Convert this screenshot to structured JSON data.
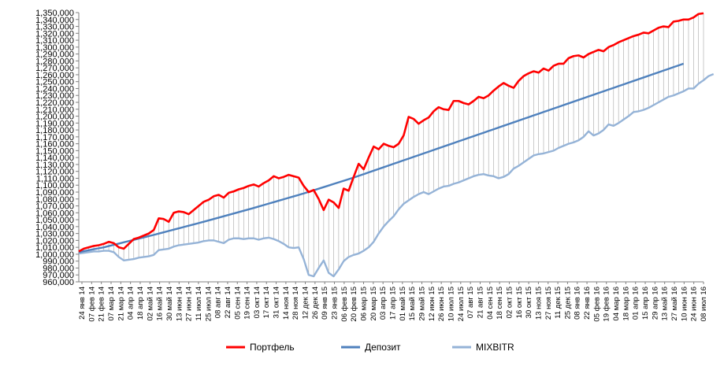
{
  "chart_data": {
    "type": "line",
    "title": "",
    "xlabel": "",
    "ylabel": "",
    "ylim": [
      960000,
      1350000
    ],
    "ytick_step": 10000,
    "y_ticks": [
      "960,000",
      "970,000",
      "980,000",
      "990,000",
      "1,000,000",
      "1,010,000",
      "1,020,000",
      "1,030,000",
      "1,040,000",
      "1,050,000",
      "1,060,000",
      "1,070,000",
      "1,080,000",
      "1,090,000",
      "1,100,000",
      "1,110,000",
      "1,120,000",
      "1,130,000",
      "1,140,000",
      "1,150,000",
      "1,160,000",
      "1,170,000",
      "1,180,000",
      "1,190,000",
      "1,200,000",
      "1,210,000",
      "1,220,000",
      "1,230,000",
      "1,240,000",
      "1,250,000",
      "1,260,000",
      "1,270,000",
      "1,280,000",
      "1,290,000",
      "1,300,000",
      "1,310,000",
      "1,320,000",
      "1,330,000",
      "1,340,000",
      "1,350,000"
    ],
    "x_ticks": [
      "24 янв 14",
      "07 фев 14",
      "21 фев 14",
      "07 мар 14",
      "21 мар 14",
      "04 апр 14",
      "18 апр 14",
      "02 май 14",
      "16 май 14",
      "30 май 14",
      "13 июн 14",
      "27 июн 14",
      "11 июл 14",
      "25 июл 14",
      "08 авг 14",
      "22 авг 14",
      "05 сен 14",
      "19 сен 14",
      "03 окт 14",
      "17 окт 14",
      "31 окт 14",
      "14 ноя 14",
      "28 ноя 14",
      "12 дек 14",
      "26 дек 14",
      "09 янв 15",
      "23 янв 15",
      "06 фев 15",
      "20 фев 15",
      "06 мар 15",
      "20 мар 15",
      "03 апр 15",
      "17 апр 15",
      "01 май 15",
      "15 май 15",
      "29 май 15",
      "12 июн 15",
      "26 июн 15",
      "10 июл 15",
      "24 июл 15",
      "07 авг 15",
      "21 авг 15",
      "04 сен 15",
      "18 сен 15",
      "02 окт 15",
      "16 окт 15",
      "30 окт 15",
      "13 ноя 15",
      "27 ноя 15",
      "11 дек 15",
      "25 дек 15",
      "08 янв 16",
      "22 янв 16",
      "05 фев 16",
      "19 фев 16",
      "04 мар 16",
      "18 мар 16",
      "01 апр 16",
      "15 апр 16",
      "29 апр 16",
      "13 май 16",
      "27 май 16",
      "10 июн 16",
      "24 июн 16",
      "08 июл 16"
    ],
    "grid": "vertical lines between Портфель and MIXBITR",
    "legend": "bottom",
    "series": [
      {
        "name": "Портфель",
        "color": "#ff0000",
        "values": [
          1004000,
          1008000,
          1010000,
          1012000,
          1013000,
          1015000,
          1018000,
          1016000,
          1010000,
          1008000,
          1015000,
          1022000,
          1024000,
          1027000,
          1030000,
          1035000,
          1052000,
          1051000,
          1047000,
          1060000,
          1062000,
          1061000,
          1058000,
          1064000,
          1070000,
          1076000,
          1079000,
          1084000,
          1086000,
          1082000,
          1089000,
          1091000,
          1094000,
          1096000,
          1099000,
          1101000,
          1098000,
          1103000,
          1107000,
          1113000,
          1110000,
          1112000,
          1115000,
          1113000,
          1111000,
          1099000,
          1090000,
          1093000,
          1080000,
          1064000,
          1079000,
          1075000,
          1067000,
          1095000,
          1092000,
          1112000,
          1131000,
          1123000,
          1140000,
          1156000,
          1152000,
          1160000,
          1157000,
          1155000,
          1160000,
          1172000,
          1199000,
          1196000,
          1189000,
          1194000,
          1198000,
          1207000,
          1213000,
          1210000,
          1209000,
          1222000,
          1222000,
          1219000,
          1217000,
          1222000,
          1228000,
          1226000,
          1230000,
          1237000,
          1243000,
          1248000,
          1244000,
          1241000,
          1251000,
          1258000,
          1262000,
          1265000,
          1263000,
          1269000,
          1266000,
          1273000,
          1276000,
          1276000,
          1284000,
          1287000,
          1288000,
          1285000,
          1290000,
          1293000,
          1296000,
          1294000,
          1300000,
          1303000,
          1307000,
          1310000,
          1313000,
          1316000,
          1318000,
          1321000,
          1320000,
          1324000,
          1328000,
          1330000,
          1329000,
          1337000,
          1338000,
          1340000,
          1340000,
          1343000,
          1348000,
          1349000
        ]
      },
      {
        "name": "Депозит",
        "color": "#4f81bd",
        "values": [
          1003000,
          1004400,
          1005800,
          1007200,
          1008600,
          1010000,
          1011800,
          1013600,
          1015400,
          1017200,
          1019000,
          1020800,
          1022600,
          1024400,
          1026200,
          1028000,
          1029900,
          1031800,
          1033700,
          1035600,
          1037500,
          1039400,
          1041300,
          1043200,
          1045100,
          1047000,
          1049000,
          1051000,
          1053000,
          1055000,
          1057000,
          1059000,
          1061000,
          1063000,
          1065000,
          1067000,
          1069100,
          1071200,
          1073300,
          1075400,
          1077500,
          1079600,
          1081700,
          1083800,
          1085900,
          1088000,
          1090300,
          1092600,
          1094900,
          1097200,
          1099500,
          1101800,
          1104100,
          1106400,
          1108700,
          1111000,
          1113500,
          1116000,
          1118500,
          1121000,
          1123500,
          1126000,
          1128500,
          1131000,
          1133500,
          1136000,
          1138500,
          1141000,
          1143500,
          1146000,
          1148500,
          1151000,
          1153500,
          1156000,
          1158500,
          1161000,
          1163500,
          1166000,
          1168500,
          1171000,
          1173500,
          1176000,
          1178500,
          1181000,
          1183500,
          1186000,
          1188500,
          1191000,
          1193500,
          1196000,
          1198500,
          1201000,
          1203500,
          1206000,
          1208500,
          1211000,
          1213500,
          1216000,
          1218500,
          1221000,
          1223500,
          1226000,
          1228500,
          1231000,
          1233500,
          1236000,
          1238500,
          1241000,
          1243500,
          1246000,
          1248500,
          1251000,
          1253500,
          1256000,
          1258500,
          1261000,
          1263500,
          1266000,
          1268500,
          1271000,
          1273500,
          1276000
        ]
      },
      {
        "name": "MIXBITR",
        "color": "#95b3d7",
        "values": [
          1001000,
          1002000,
          1003000,
          1004000,
          1004000,
          1005000,
          1005000,
          1003000,
          996000,
          991000,
          992000,
          993000,
          995000,
          996000,
          997000,
          999000,
          1006000,
          1007000,
          1008000,
          1011000,
          1013000,
          1014000,
          1015000,
          1016000,
          1017000,
          1019000,
          1020000,
          1020000,
          1018000,
          1016000,
          1021000,
          1023000,
          1023000,
          1022000,
          1023000,
          1023000,
          1021000,
          1023000,
          1024000,
          1022000,
          1019000,
          1015000,
          1010000,
          1009000,
          1010000,
          993000,
          970000,
          968000,
          980000,
          991000,
          973000,
          968000,
          978000,
          990000,
          996000,
          999000,
          1001000,
          1005000,
          1010000,
          1018000,
          1030000,
          1040000,
          1048000,
          1055000,
          1065000,
          1073000,
          1078000,
          1083000,
          1087000,
          1090000,
          1087000,
          1091000,
          1095000,
          1098000,
          1099000,
          1102000,
          1104000,
          1107000,
          1110000,
          1113000,
          1115000,
          1116000,
          1114000,
          1113000,
          1110000,
          1112000,
          1116000,
          1124000,
          1128000,
          1133000,
          1138000,
          1143000,
          1145000,
          1146000,
          1148000,
          1150000,
          1154000,
          1157000,
          1160000,
          1162000,
          1165000,
          1170000,
          1178000,
          1172000,
          1175000,
          1180000,
          1188000,
          1186000,
          1190000,
          1195000,
          1200000,
          1206000,
          1207000,
          1209000,
          1212000,
          1216000,
          1220000,
          1224000,
          1228000,
          1230000,
          1233000,
          1236000,
          1240000,
          1240000,
          1247000,
          1252000,
          1258000,
          1261000
        ]
      }
    ]
  }
}
